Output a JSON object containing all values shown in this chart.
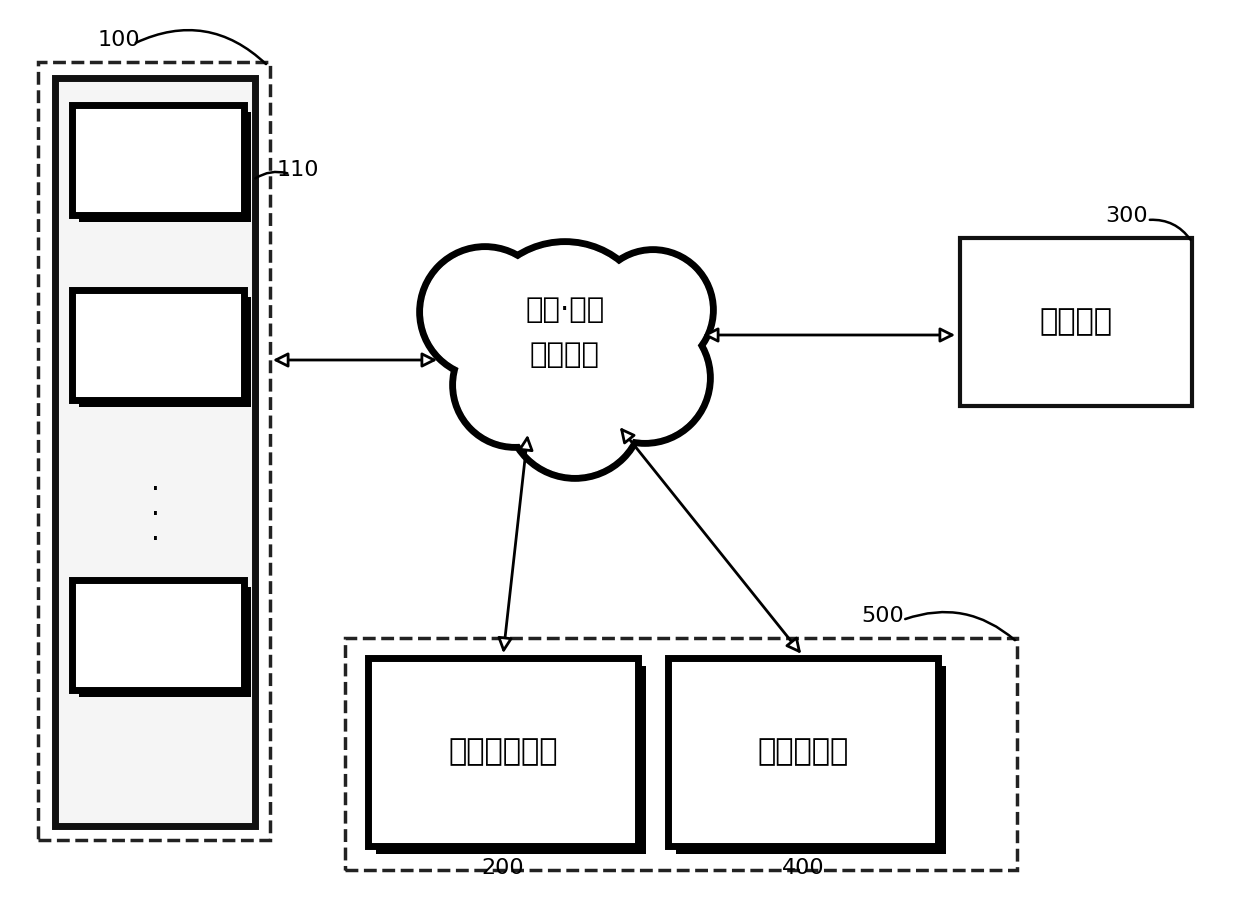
{
  "bg_color": "#ffffff",
  "labels": {
    "100": "100",
    "110": "110",
    "200": "200",
    "300": "300",
    "400": "400",
    "500": "500",
    "cloud_line1": "有线·无线",
    "cloud_line2": "通信网络",
    "monitor": "监控模块",
    "signal": "信号处理模块",
    "control": "控制服务器",
    "dots": "·\n·\n·"
  },
  "font_size_label": 20,
  "font_size_ref": 16,
  "font_size_main": 22,
  "font_size_cloud": 21,
  "lw_thick": 5,
  "lw_medium": 3,
  "lw_dashed": 2.5
}
